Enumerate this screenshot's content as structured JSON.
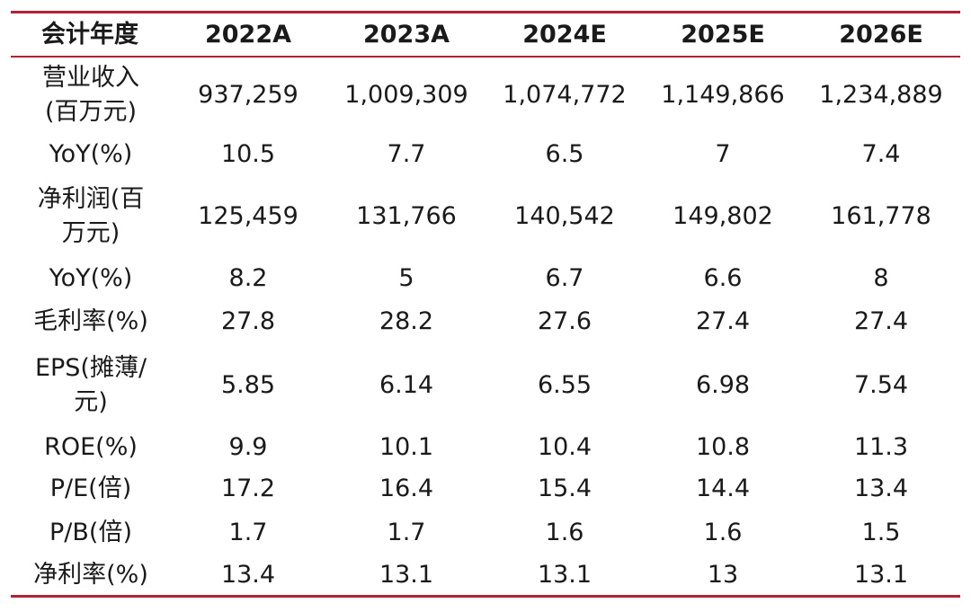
{
  "table": {
    "header": [
      "会计年度",
      "2022A",
      "2023A",
      "2024E",
      "2025E",
      "2026E"
    ],
    "rows": [
      [
        "营业收入(百万元)",
        "937,259",
        "1,009,309",
        "1,074,772",
        "1,149,866",
        "1,234,889"
      ],
      [
        "YoY(%)",
        "10.5",
        "7.7",
        "6.5",
        "7",
        "7.4"
      ],
      [
        "净利润(百万元)",
        "125,459",
        "131,766",
        "140,542",
        "149,802",
        "161,778"
      ],
      [
        "YoY(%)",
        "8.2",
        "5",
        "6.7",
        "6.6",
        "8"
      ],
      [
        "毛利率(%)",
        "27.8",
        "28.2",
        "27.6",
        "27.4",
        "27.4"
      ],
      [
        "EPS(摊薄/元)",
        "5.85",
        "6.14",
        "6.55",
        "6.98",
        "7.54"
      ],
      [
        "ROE(%)",
        "9.9",
        "10.1",
        "10.4",
        "10.8",
        "11.3"
      ],
      [
        "P/E(倍)",
        "17.2",
        "16.4",
        "15.4",
        "14.4",
        "13.4"
      ],
      [
        "P/B(倍)",
        "1.7",
        "1.7",
        "1.6",
        "1.6",
        "1.5"
      ],
      [
        "净利率(%)",
        "13.4",
        "13.1",
        "13.1",
        "13",
        "13.1"
      ]
    ]
  }
}
